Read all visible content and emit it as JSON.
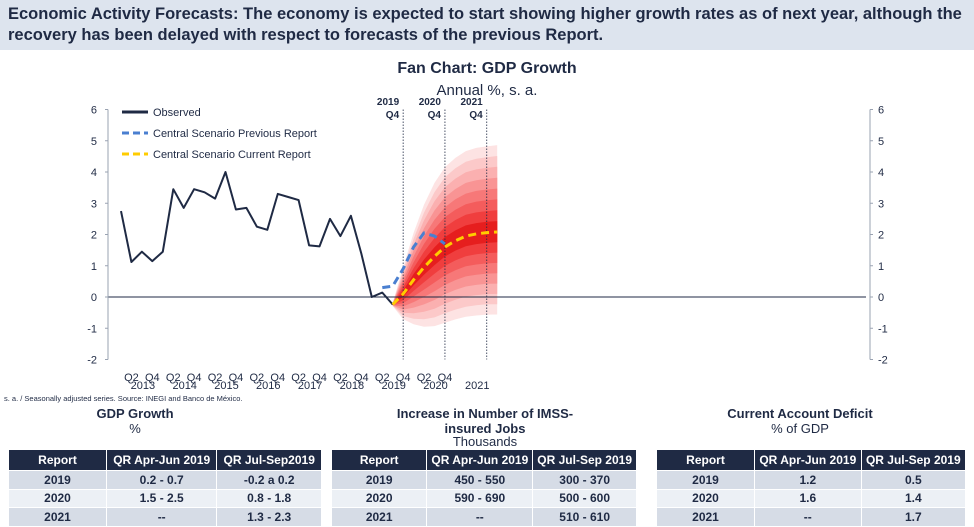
{
  "header": {
    "text": "Economic Activity Forecasts: The economy is expected to start showing higher growth rates as of next year, although the recovery has been delayed with respect to forecasts of the previous Report."
  },
  "chart_data": {
    "type": "line",
    "title": "Fan Chart: GDP Growth",
    "subtitle": "Annual %, s. a.",
    "ylim": [
      -2,
      6
    ],
    "yticks": [
      "-2",
      "-1",
      "0",
      "1",
      "2",
      "3",
      "4",
      "5",
      "6"
    ],
    "x_quarter_ticks": [
      "Q2",
      "Q4",
      "Q2",
      "Q4",
      "Q2",
      "Q4",
      "Q2",
      "Q4",
      "Q2",
      "Q4",
      "Q2",
      "Q4",
      "Q2",
      "Q4",
      "Q2",
      "Q4"
    ],
    "x_years": [
      "2013",
      "2014",
      "2015",
      "2016",
      "2017",
      "2018",
      "2019",
      "2020",
      "2021"
    ],
    "first_quarter": "2013Q1",
    "markers": [
      {
        "year": "2019",
        "quarter": "Q4"
      },
      {
        "year": "2020",
        "quarter": "Q4"
      },
      {
        "year": "2021",
        "quarter": "Q4"
      }
    ],
    "series": [
      {
        "name": "Observed",
        "color": "#1f2a44",
        "style": "solid",
        "start_index": 0,
        "values": [
          2.75,
          1.12,
          1.45,
          1.15,
          1.45,
          3.45,
          2.85,
          3.45,
          3.35,
          3.15,
          4.0,
          2.8,
          2.85,
          2.25,
          2.15,
          3.3,
          3.2,
          3.1,
          1.65,
          1.62,
          2.5,
          1.95,
          2.6,
          1.38,
          0.0,
          0.14,
          -0.24
        ]
      },
      {
        "name": "Central Scenario Previous Report",
        "color": "#4a7fd0",
        "style": "dashed",
        "start_index": 25,
        "values": [
          0.3,
          0.35,
          0.9,
          1.6,
          2.05,
          1.95,
          1.7
        ]
      },
      {
        "name": "Central Scenario Current Report",
        "color": "#ffcc00",
        "style": "dashed",
        "start_index": 26,
        "values": [
          -0.24,
          0.1,
          0.55,
          0.95,
          1.3,
          1.6,
          1.8,
          1.95,
          2.02,
          2.06,
          2.08
        ]
      }
    ],
    "fan": {
      "start_index": 26,
      "center": [
        -0.24,
        0.1,
        0.55,
        0.95,
        1.3,
        1.6,
        1.8,
        1.95,
        2.02,
        2.06,
        2.08
      ],
      "half_width_outer": [
        0.05,
        0.85,
        1.5,
        2.0,
        2.35,
        2.55,
        2.65,
        2.72,
        2.75,
        2.76,
        2.78
      ],
      "band_colors": [
        "#fde3e3",
        "#fcc9c9",
        "#fbb0b0",
        "#f99494",
        "#f77878",
        "#f45c5c",
        "#f03e3e",
        "#e61e1e"
      ]
    },
    "legend_position": "top-left"
  },
  "source_note": "s. a. / Seasonally adjusted series. Source: INEGI and Banco de México.",
  "tables": [
    {
      "title": "GDP Growth",
      "subtitle": "%",
      "headers": [
        "Report",
        "QR Apr-Jun 2019",
        "QR Jul-Sep2019"
      ],
      "rows": [
        [
          "2019",
          "0.2 - 0.7",
          "-0.2 a 0.2"
        ],
        [
          "2020",
          "1.5 - 2.5",
          "0.8 - 1.8"
        ],
        [
          "2021",
          "--",
          "1.3 - 2.3"
        ]
      ]
    },
    {
      "title": "Increase in Number of IMSS-insured Jobs",
      "subtitle": "Thousands",
      "headers": [
        "Report",
        "QR Apr-Jun 2019",
        "QR Jul-Sep 2019"
      ],
      "rows": [
        [
          "2019",
          "450 - 550",
          "300 - 370"
        ],
        [
          "2020",
          "590 - 690",
          "500 - 600"
        ],
        [
          "2021",
          "--",
          "510 - 610"
        ]
      ]
    },
    {
      "title": "Current Account Deficit",
      "subtitle": "% of GDP",
      "headers": [
        "Report",
        "QR Apr-Jun 2019",
        "QR Jul-Sep 2019"
      ],
      "rows": [
        [
          "2019",
          "1.2",
          "0.5"
        ],
        [
          "2020",
          "1.6",
          "1.4"
        ],
        [
          "2021",
          "--",
          "1.7"
        ]
      ]
    }
  ]
}
